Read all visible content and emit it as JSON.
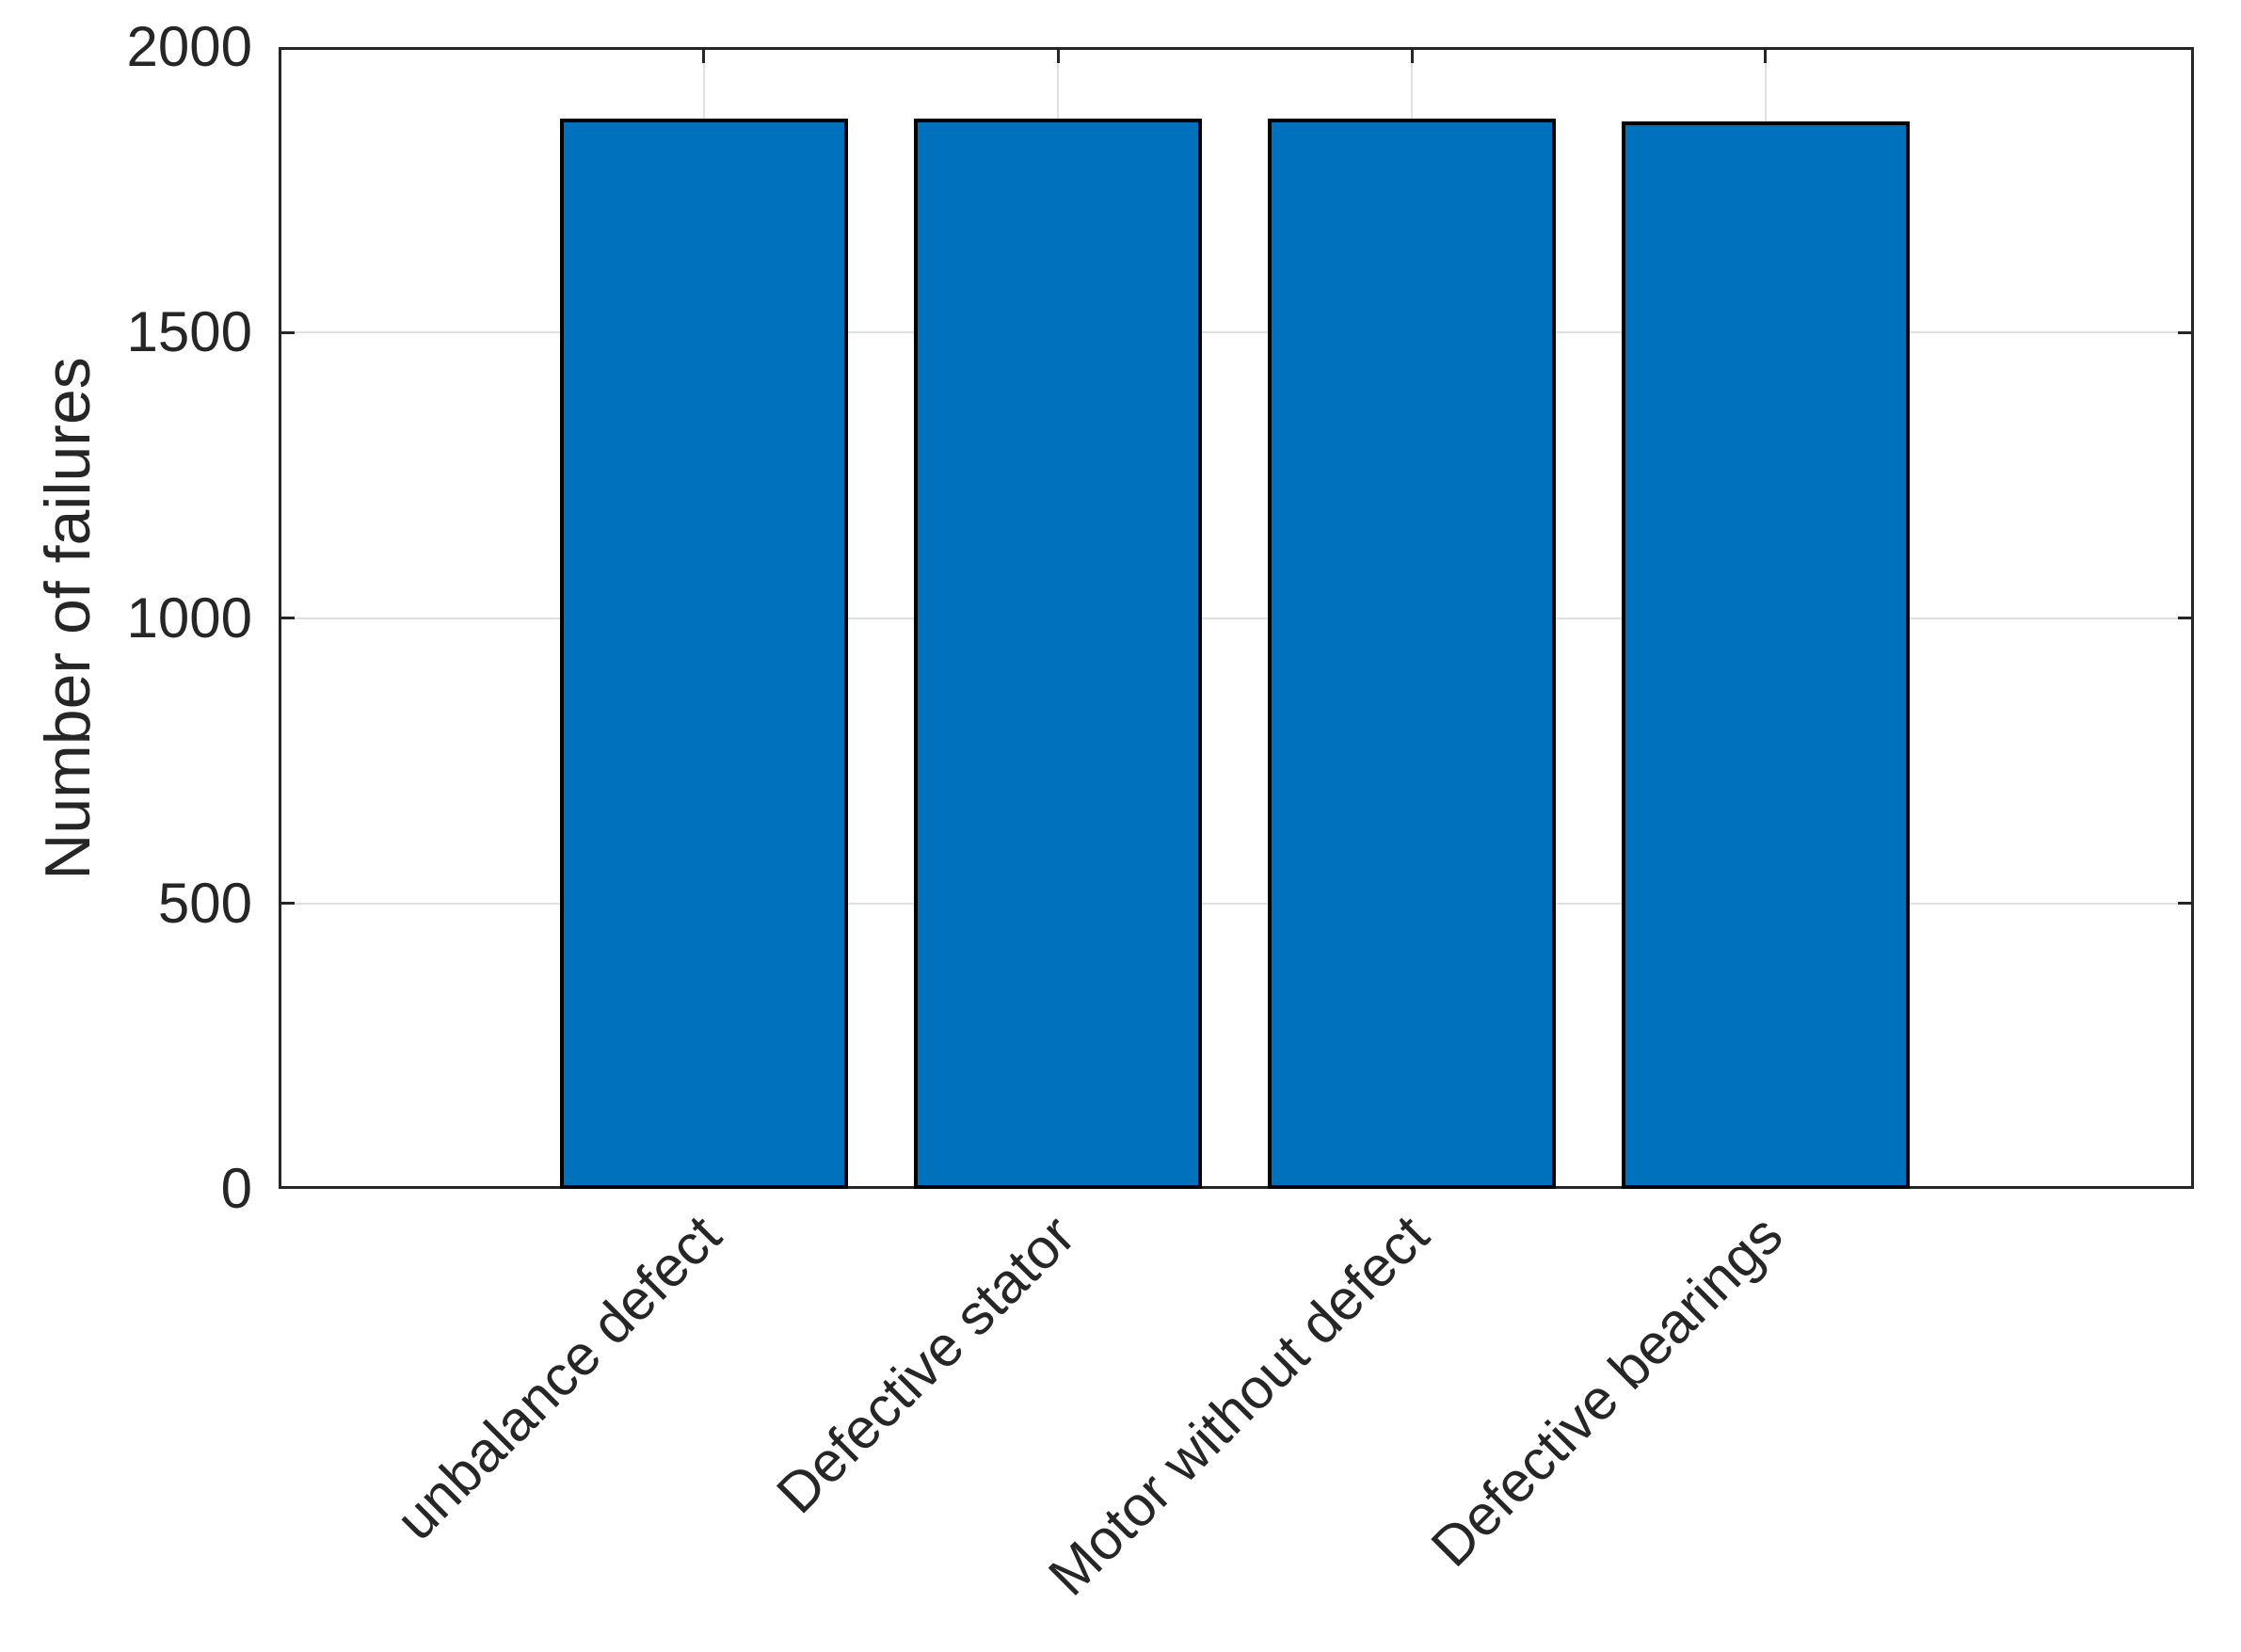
{
  "chart_data": {
    "type": "bar",
    "categories": [
      "unbalance defect",
      "Defective stator",
      "Motor without defect",
      "Defective bearings"
    ],
    "values": [
      1875,
      1875,
      1875,
      1870
    ],
    "title": "",
    "xlabel": "",
    "ylabel": "Number of failures",
    "ylim": [
      0,
      2000
    ],
    "yticks": [
      0,
      500,
      1000,
      1500,
      2000
    ],
    "ytick_labels": [
      "0",
      "500",
      "1000",
      "1500",
      "2000"
    ],
    "grid": true,
    "legend": null,
    "colors": {
      "bar_fill": "#0072BD",
      "bar_edge": "#000000",
      "axis": "#262626",
      "grid": "#e0e0e0",
      "text": "#262626",
      "background": "#ffffff"
    }
  }
}
